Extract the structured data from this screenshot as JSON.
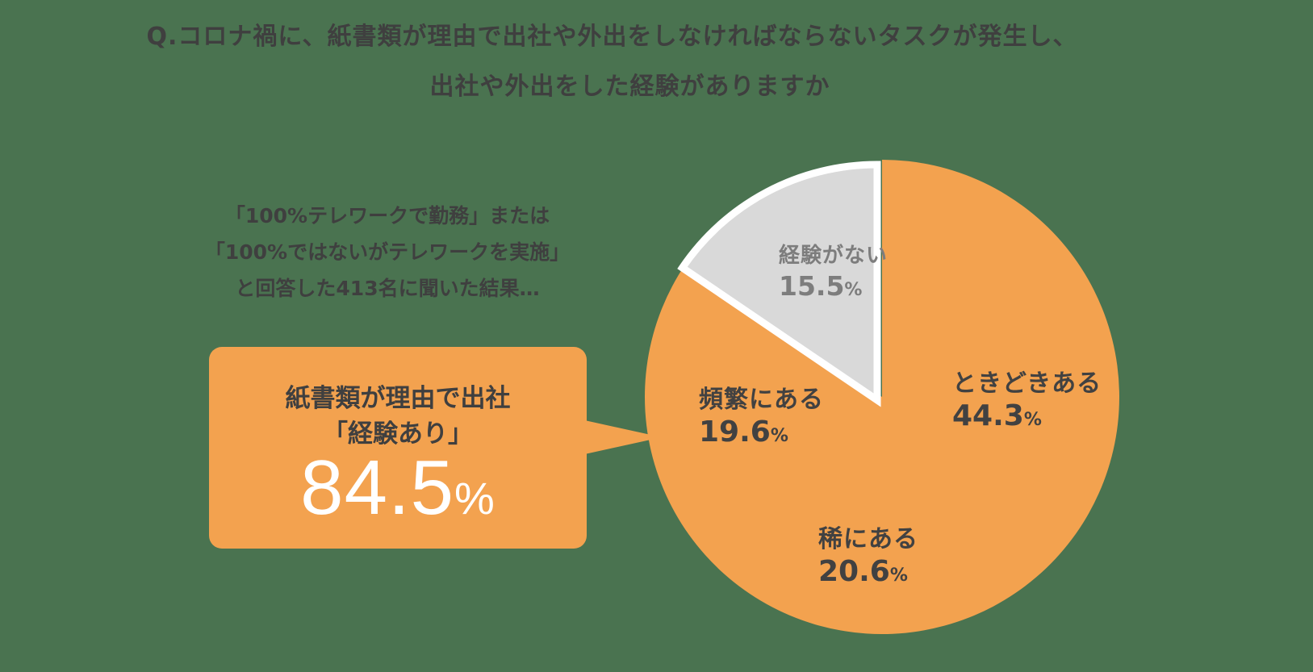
{
  "title": {
    "line1": "Q.コロナ禍に、紙書類が理由で出社や外出をしなければならないタスクが発生し、",
    "line2": "出社や外出をした経験がありますか"
  },
  "note": {
    "line1": "「100%テレワークで勤務」または",
    "line2": "「100%ではないがテレワークを実施」",
    "line3": "と回答した413名に聞いた結果…"
  },
  "callout": {
    "line1": "紙書類が理由で出社",
    "line2": "「経験あり」",
    "value": "84.5",
    "unit": "%"
  },
  "colors": {
    "background": "#4a7350",
    "experienced": "#f3a24f",
    "no_experience": "#d9d9d9",
    "text": "#414141"
  },
  "chart_data": {
    "type": "pie",
    "title": "Q.コロナ禍に、紙書類が理由で出社や外出をしなければならないタスクが発生し、出社や外出をした経験がありますか",
    "categories": [
      "ときどきある",
      "稀にある",
      "頻繁にある",
      "経験がない"
    ],
    "values": [
      44.3,
      20.6,
      19.6,
      15.5
    ],
    "unit": "%",
    "colors": [
      "#f3a24f",
      "#f3a24f",
      "#f3a24f",
      "#d9d9d9"
    ],
    "exploded": [
      "経験がない"
    ],
    "annotation": "紙書類が理由で出社「経験あり」84.5%",
    "n": 413
  },
  "slices": [
    {
      "label": "ときどきある",
      "value": "44.3",
      "unit": "%"
    },
    {
      "label": "稀にある",
      "value": "20.6",
      "unit": "%"
    },
    {
      "label": "頻繁にある",
      "value": "19.6",
      "unit": "%"
    },
    {
      "label": "経験がない",
      "value": "15.5",
      "unit": "%"
    }
  ]
}
